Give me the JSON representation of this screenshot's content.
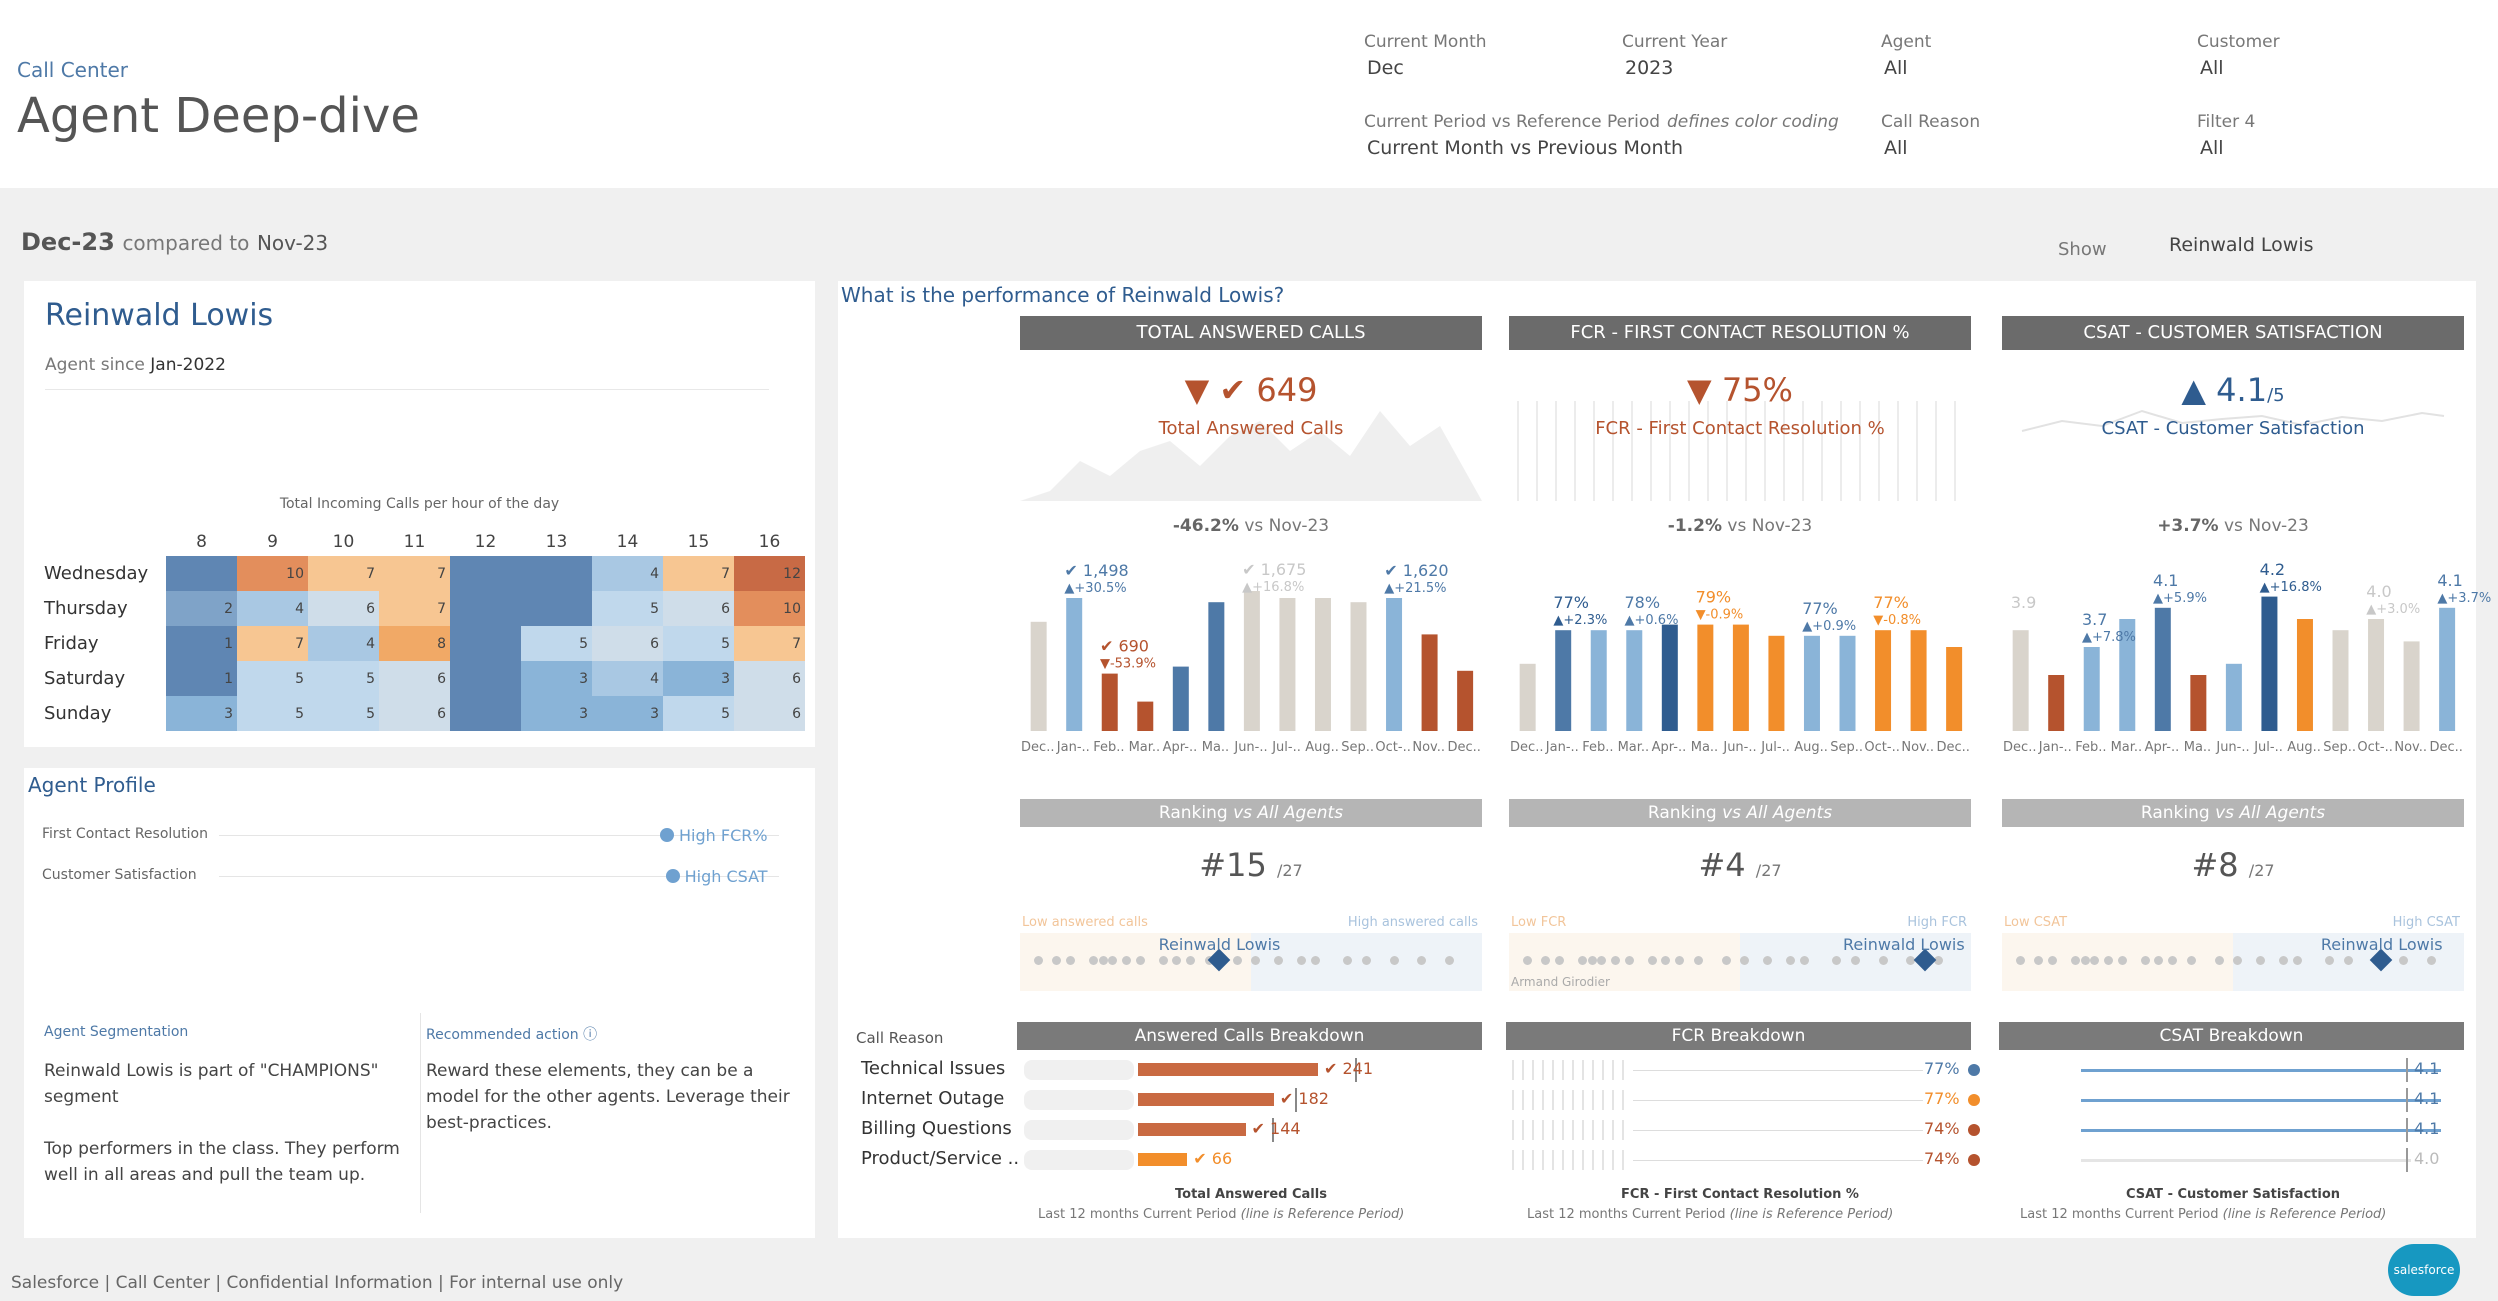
{
  "header": {
    "breadcrumb": "Call Center",
    "title": "Agent Deep-dive",
    "filters": {
      "current_month_label": "Current Month",
      "current_month": "Dec",
      "current_year_label": "Current Year",
      "current_year": "2023",
      "agent_label": "Agent",
      "agent": "All",
      "customer_label": "Customer",
      "customer": "All",
      "period_label": "Current Period vs Reference Period",
      "period_note": "defines color coding",
      "period": "Current Month vs Previous Month",
      "call_reason_label": "Call Reason",
      "call_reason": "All",
      "filter4_label": "Filter 4",
      "filter4": "All"
    }
  },
  "period_bar": {
    "current": "Dec-23",
    "compared_to": "compared to",
    "reference": "Nov-23",
    "show_label": "Show",
    "show_value": "Reinwald Lowis"
  },
  "agent_card": {
    "name": "Reinwald Lowis",
    "since_label": "Agent since",
    "since": "Jan-2022",
    "heatmap": {
      "title": "Total Incoming Calls per hour of the day",
      "hours": [
        "8",
        "9",
        "10",
        "11",
        "12",
        "13",
        "14",
        "15",
        "16"
      ],
      "days": [
        "Wednesday",
        "Thursday",
        "Friday",
        "Saturday",
        "Sunday"
      ],
      "values": [
        [
          null,
          10,
          7,
          7,
          null,
          null,
          4,
          7,
          12
        ],
        [
          2,
          4,
          6,
          7,
          null,
          null,
          5,
          6,
          10
        ],
        [
          1,
          7,
          4,
          8,
          null,
          5,
          6,
          5,
          7
        ],
        [
          1,
          5,
          5,
          6,
          null,
          3,
          4,
          3,
          6
        ],
        [
          3,
          5,
          5,
          6,
          null,
          3,
          3,
          5,
          6
        ]
      ]
    }
  },
  "profile": {
    "title": "Agent Profile",
    "rows": [
      {
        "label": "First Contact Resolution",
        "value": "High FCR%",
        "level": 0.8
      },
      {
        "label": "Customer Satisfaction",
        "value": "High CSAT",
        "level": 0.81
      }
    ],
    "segmentation_title": "Agent Segmentation",
    "segmentation_text": "Reinwald Lowis is part of \"CHAMPIONS\" segment",
    "segmentation_desc": "Top performers in the class. They perform well in all areas and pull the team up.",
    "action_title": "Recommended action",
    "action_text": "Reward these elements, they can be a model for the other agents. Leverage their best-practices."
  },
  "performance": {
    "question": "What is the performance of Reinwald Lowis?",
    "month_labels": [
      "Dec..",
      "Jan-..",
      "Feb..",
      "Mar..",
      "Apr-..",
      "Ma..",
      "Jun-..",
      "Jul-..",
      "Aug..",
      "Sep..",
      "Oct-..",
      "Nov..",
      "Dec.."
    ],
    "tiles": [
      {
        "header": "TOTAL ANSWERED CALLS",
        "value": "649",
        "label": "Total Answered Calls",
        "delta": "-46.2%",
        "vs": "vs Nov-23",
        "arrow": "down",
        "color": "#b5532e",
        "bars": [
          0.78,
          0.95,
          0.41,
          0.21,
          0.46,
          0.92,
          1.0,
          0.95,
          0.95,
          0.92,
          0.95,
          0.69,
          0.43
        ],
        "bar_colors": [
          "#d9d4cc",
          "#8ab4d8",
          "#b5532e",
          "#b5532e",
          "#4e79a7",
          "#4e79a7",
          "#d9d4cc",
          "#d9d4cc",
          "#d9d4cc",
          "#d9d4cc",
          "#8ab4d8",
          "#b5532e",
          "#b5532e"
        ],
        "annotations": [
          {
            "text": "✔ 1,498",
            "sub": "▲+30.5%",
            "i": 1,
            "color": "#4e79a7"
          },
          {
            "text": "✔ 690",
            "sub": "▼-53.9%",
            "i": 2,
            "color": "#b5532e"
          },
          {
            "text": "✔ 1,675",
            "sub": "▲+16.8%",
            "i": 6,
            "color": "#c8c8c8"
          },
          {
            "text": "✔ 1,620",
            "sub": "▲+21.5%",
            "i": 10,
            "color": "#4e79a7"
          }
        ],
        "rank": "#15",
        "rank_total": "/27",
        "low_label": "Low answered calls",
        "high_label": "High answered calls",
        "agent_pos": 0.43,
        "breakdown_title": "Answered Calls Breakdown",
        "footer": "Total Answered Calls",
        "footer_sub1": "Last 12 months",
        "footer_sub2": "Current Period",
        "footer_sub3": "(line is Reference Period)"
      },
      {
        "header": "FCR - FIRST CONTACT RESOLUTION %",
        "value": "75%",
        "label": "FCR - First Contact Resolution %",
        "delta": "-1.2%",
        "vs": "vs Nov-23",
        "arrow": "down",
        "color": "#b5532e",
        "bars": [
          0.72,
          0.78,
          0.78,
          0.78,
          0.79,
          0.79,
          0.79,
          0.77,
          0.77,
          0.77,
          0.78,
          0.78,
          0.75
        ],
        "bar_colors": [
          "#d9d4cc",
          "#4e79a7",
          "#8ab4d8",
          "#8ab4d8",
          "#2f5c8f",
          "#f28e2b",
          "#f28e2b",
          "#f28e2b",
          "#8ab4d8",
          "#8ab4d8",
          "#f28e2b",
          "#f28e2b",
          "#f28e2b"
        ],
        "annotations": [
          {
            "text": "77%",
            "sub": "▲+2.3%",
            "i": 1,
            "color": "#2f5c8f"
          },
          {
            "text": "78%",
            "sub": "▲+0.6%",
            "i": 3,
            "color": "#4e79a7"
          },
          {
            "text": "79%",
            "sub": "▼-0.9%",
            "i": 5,
            "color": "#f28e2b"
          },
          {
            "text": "77%",
            "sub": "▲+0.9%",
            "i": 8,
            "color": "#4e79a7"
          },
          {
            "text": "77%",
            "sub": "▼-0.8%",
            "i": 10,
            "color": "#f28e2b"
          }
        ],
        "rank": "#4",
        "rank_total": "/27",
        "low_label": "Low FCR",
        "high_label": "High FCR",
        "agent_pos": 0.9,
        "other_name": "Armand Girodier",
        "breakdown_title": "FCR Breakdown",
        "footer": "FCR - First Contact Resolution %",
        "footer_sub1": "Last 12 months",
        "footer_sub2": "Current Period",
        "footer_sub3": "(line is Reference Period)"
      },
      {
        "header": "CSAT - CUSTOMER SATISFACTION",
        "value": "4.1",
        "value_suffix": "/5",
        "label": "CSAT - Customer Satisfaction",
        "delta": "+3.7%",
        "vs": "vs Nov-23",
        "arrow": "up",
        "color": "#2f5c8f",
        "bars": [
          0.78,
          0.7,
          0.75,
          0.8,
          0.82,
          0.7,
          0.72,
          0.84,
          0.8,
          0.78,
          0.8,
          0.76,
          0.82
        ],
        "bar_colors": [
          "#d9d4cc",
          "#b5532e",
          "#8ab4d8",
          "#8ab4d8",
          "#4e79a7",
          "#b5532e",
          "#8ab4d8",
          "#2f5c8f",
          "#f28e2b",
          "#d9d4cc",
          "#d9d4cc",
          "#d9d4cc",
          "#8ab4d8"
        ],
        "annotations": [
          {
            "text": "3.9",
            "sub": "",
            "i": 0,
            "color": "#c8c8c8"
          },
          {
            "text": "3.7",
            "sub": "▲+7.8%",
            "i": 2,
            "color": "#4e79a7"
          },
          {
            "text": "4.1",
            "sub": "▲+5.9%",
            "i": 4,
            "color": "#4e79a7"
          },
          {
            "text": "4.2",
            "sub": "▲+16.8%",
            "i": 7,
            "color": "#2f5c8f"
          },
          {
            "text": "4.0",
            "sub": "▲+3.0%",
            "i": 10,
            "color": "#c8c8c8"
          },
          {
            "text": "4.1",
            "sub": "▲+3.7%",
            "i": 12,
            "color": "#4e79a7"
          }
        ],
        "rank": "#8",
        "rank_total": "/27",
        "low_label": "Low CSAT",
        "high_label": "High CSAT",
        "agent_pos": 0.82,
        "breakdown_title": "CSAT Breakdown",
        "footer": "CSAT - Customer Satisfaction",
        "footer_sub1": "Last 12 months",
        "footer_sub2": "Current Period",
        "footer_sub3": "(line is Reference Period)"
      }
    ],
    "call_reason_label": "Call Reason",
    "reasons": [
      "Technical Issues",
      "Internet Outage",
      "Billing Questions",
      "Product/Service .."
    ],
    "calls_breakdown": [
      {
        "value": "✔ 241",
        "v": 241,
        "ref": 290
      },
      {
        "value": "✔ 182",
        "v": 182,
        "ref": 210
      },
      {
        "value": "✔ 144",
        "v": 144,
        "ref": 180
      },
      {
        "value": "✔ 66",
        "v": 66,
        "ref": 0
      }
    ],
    "fcr_breakdown": [
      {
        "value": "77%",
        "color": "#4e79a7"
      },
      {
        "value": "77%",
        "color": "#f28e2b"
      },
      {
        "value": "74%",
        "color": "#b5532e"
      },
      {
        "value": "74%",
        "color": "#b5532e"
      }
    ],
    "csat_breakdown": [
      {
        "value": "4.1"
      },
      {
        "value": "4.1"
      },
      {
        "value": "4.1"
      },
      {
        "value": "4.0"
      }
    ],
    "ranking_title": "Ranking",
    "ranking_vs": "vs All Agents"
  },
  "agent_name_label": "Reinwald Lowis",
  "footer": "Salesforce | Call Center | Confidential Information | For internal use only",
  "logo_text": "salesforce",
  "colors": {
    "accent": "#2f5c8f",
    "down": "#b5532e",
    "orange": "#f28e2b",
    "light_blue": "#8ab4d8",
    "grey_header": "#6b6b6b"
  }
}
